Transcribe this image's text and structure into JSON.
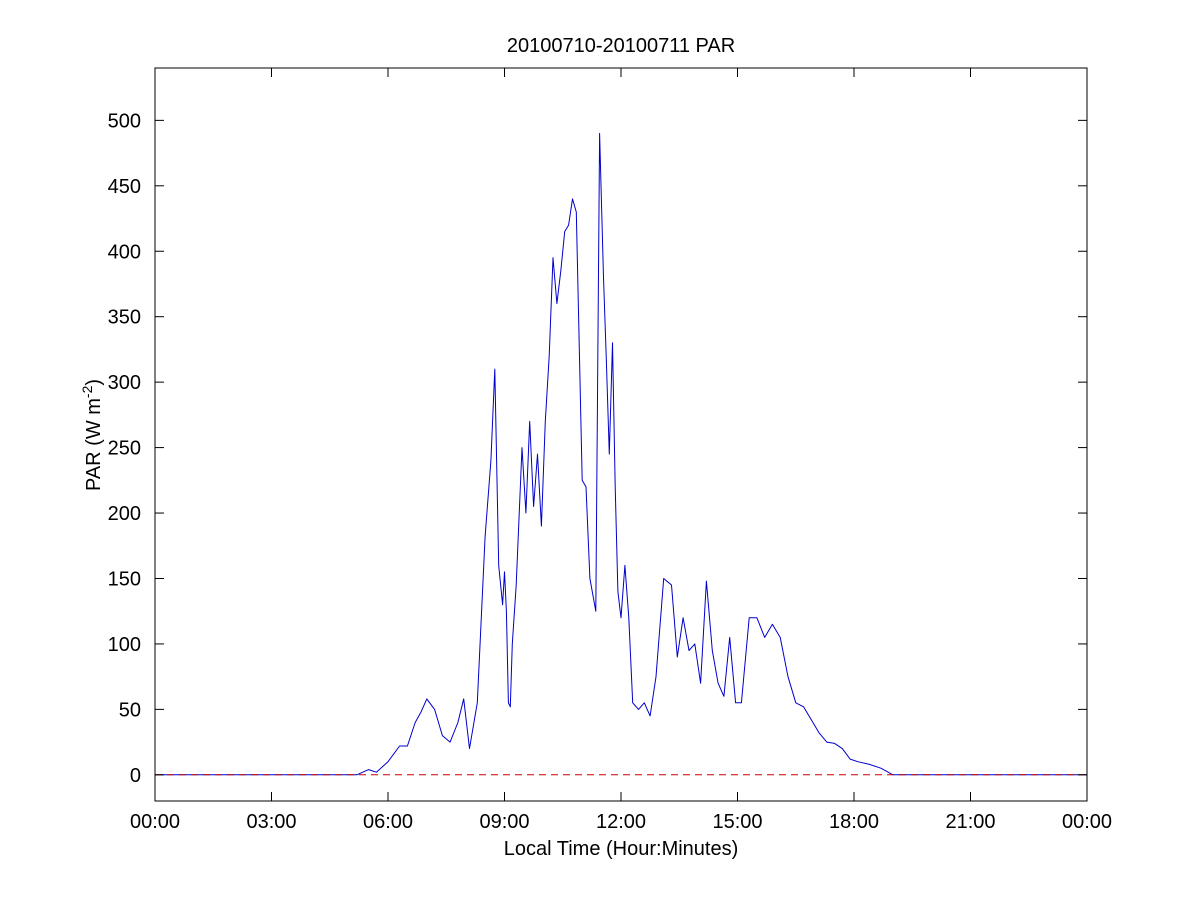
{
  "chart_data": {
    "type": "line",
    "title": "20100710-20100711 PAR",
    "xlabel": "Local Time (Hour:Minutes)",
    "ylabel": {
      "text": "PAR (W m",
      "superscript": "-2",
      "suffix": ")"
    },
    "xlim": [
      0,
      24
    ],
    "ylim": [
      -20,
      540
    ],
    "grid": false,
    "x_ticks": [
      0,
      3,
      6,
      9,
      12,
      15,
      18,
      21,
      24
    ],
    "x_tick_labels": [
      "00:00",
      "03:00",
      "06:00",
      "09:00",
      "12:00",
      "15:00",
      "18:00",
      "21:00",
      "00:00"
    ],
    "y_ticks": [
      0,
      50,
      100,
      150,
      200,
      250,
      300,
      350,
      400,
      450,
      500
    ],
    "y_tick_labels": [
      "0",
      "50",
      "100",
      "150",
      "200",
      "250",
      "300",
      "350",
      "400",
      "450",
      "500"
    ],
    "series": [
      {
        "color": "#0000cc",
        "style": "solid",
        "x": [
          0,
          5.2,
          5.5,
          5.7,
          6.0,
          6.3,
          6.5,
          6.7,
          6.85,
          7.0,
          7.2,
          7.4,
          7.6,
          7.8,
          7.95,
          8.1,
          8.3,
          8.5,
          8.65,
          8.75,
          8.85,
          8.95,
          9.0,
          9.05,
          9.1,
          9.15,
          9.2,
          9.3,
          9.45,
          9.55,
          9.65,
          9.75,
          9.85,
          9.95,
          10.05,
          10.15,
          10.25,
          10.35,
          10.45,
          10.55,
          10.65,
          10.75,
          10.85,
          11.0,
          11.1,
          11.2,
          11.35,
          11.45,
          11.55,
          11.62,
          11.7,
          11.78,
          11.85,
          11.92,
          12.0,
          12.1,
          12.2,
          12.3,
          12.45,
          12.6,
          12.75,
          12.9,
          13.1,
          13.3,
          13.45,
          13.6,
          13.75,
          13.9,
          14.05,
          14.2,
          14.35,
          14.5,
          14.65,
          14.8,
          14.95,
          15.1,
          15.3,
          15.5,
          15.7,
          15.9,
          16.1,
          16.3,
          16.5,
          16.7,
          16.9,
          17.1,
          17.3,
          17.5,
          17.7,
          17.9,
          18.1,
          18.4,
          18.7,
          19.0,
          24
        ],
        "values": [
          0,
          0,
          4,
          2,
          10,
          22,
          22,
          40,
          48,
          58,
          50,
          30,
          25,
          40,
          58,
          20,
          55,
          182,
          240,
          310,
          160,
          130,
          155,
          125,
          55,
          52,
          100,
          145,
          250,
          200,
          270,
          205,
          245,
          190,
          270,
          320,
          395,
          360,
          385,
          415,
          420,
          440,
          430,
          225,
          220,
          150,
          125,
          490,
          380,
          320,
          245,
          330,
          220,
          140,
          120,
          160,
          120,
          55,
          50,
          55,
          45,
          75,
          150,
          145,
          90,
          120,
          95,
          100,
          70,
          148,
          95,
          70,
          60,
          105,
          55,
          55,
          120,
          120,
          105,
          115,
          105,
          75,
          55,
          52,
          42,
          32,
          25,
          24,
          20,
          12,
          10,
          8,
          5,
          0,
          0
        ]
      },
      {
        "color": "#cc0000",
        "style": "dashed",
        "x": [
          0,
          24
        ],
        "values": [
          0,
          0
        ]
      }
    ]
  }
}
